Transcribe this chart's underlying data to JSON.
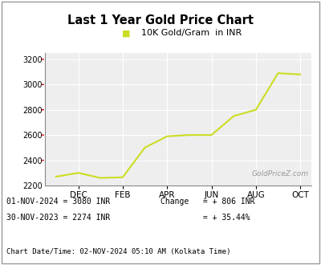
{
  "title": "Last 1 Year Gold Price Chart",
  "legend_label": "10K Gold/Gram  in INR",
  "line_color": "#ccdd22",
  "background_color": "#ffffff",
  "plot_bg_color": "#eeeeee",
  "watermark": "GoldPriceZ.com",
  "x_labels": [
    "DEC",
    "FEB",
    "APR",
    "JUN",
    "AUG",
    "OCT"
  ],
  "x_positions": [
    1,
    3,
    5,
    7,
    9,
    11
  ],
  "data_points": [
    [
      0,
      2270
    ],
    [
      1,
      2300
    ],
    [
      2,
      2260
    ],
    [
      3,
      2265
    ],
    [
      4,
      2500
    ],
    [
      5,
      2590
    ],
    [
      6,
      2600
    ],
    [
      7,
      2600
    ],
    [
      8,
      2750
    ],
    [
      9,
      2800
    ],
    [
      10,
      3090
    ],
    [
      11,
      3080
    ]
  ],
  "ylim": [
    2200,
    3250
  ],
  "yticks": [
    2200,
    2400,
    2600,
    2800,
    3000,
    3200
  ],
  "footer_left_line1": "01-NOV-2024 = 3080 INR",
  "footer_left_line2": "30-NOV-2023 = 2274 INR",
  "footer_right_line1": "Change   = + 806 INR",
  "footer_right_line2": "         = + 35.44%",
  "footer_bottom": "Chart Date/Time: 02-NOV-2024 05:10 AM (Kolkata Time)",
  "border_color": "#999999",
  "red_tick_color": "#cc0000",
  "grid_color": "#ffffff"
}
